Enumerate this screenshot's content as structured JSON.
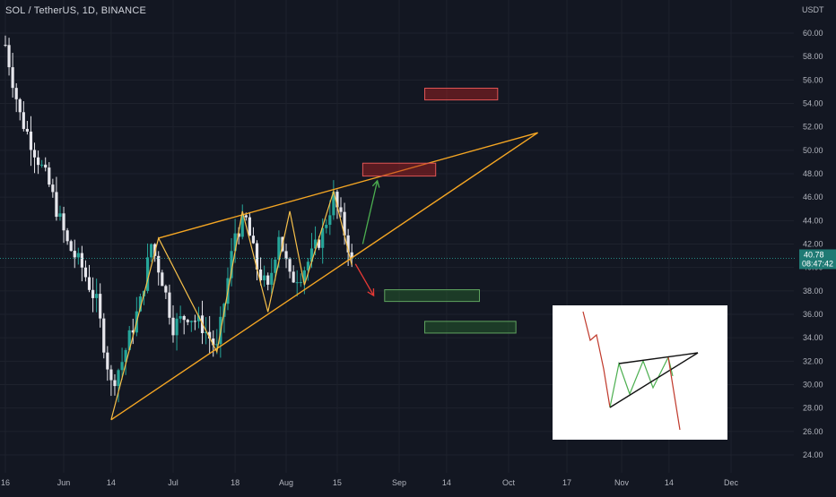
{
  "symbol": {
    "title": "SOL / TetherUS, 1D, BINANCE",
    "currency": "USDT"
  },
  "colors": {
    "background": "#131722",
    "bull": "#26a69a",
    "bear": "#e6e6ec",
    "pattern": "#f5a623",
    "grid": "#1e222d",
    "price_line": "#26a69a",
    "last_price_bg": "#1f7a74",
    "target_red": "#b22222",
    "target_green": "#2e7d32",
    "arrow_up": "#4caf50",
    "arrow_down": "#e53935"
  },
  "price_tag": {
    "price": "40.78",
    "countdown": "08:47:42"
  },
  "chart_data": {
    "type": "candlestick",
    "title": "SOL / TetherUS, 1D, BINANCE",
    "y_unit": "USDT",
    "ylim": [
      23,
      62
    ],
    "y_ticks": [
      24,
      26,
      28,
      30,
      32,
      34,
      36,
      38,
      40,
      42,
      44,
      46,
      48,
      50,
      52,
      54,
      56,
      58,
      60
    ],
    "y_tick_labels": [
      "24.00",
      "26.00",
      "28.00",
      "30.00",
      "32.00",
      "34.00",
      "36.00",
      "38.00",
      "40.00",
      "42.00",
      "44.00",
      "46.00",
      "48.00",
      "50.00",
      "52.00",
      "54.00",
      "56.00",
      "58.00",
      "60.00"
    ],
    "x_ticks": [
      {
        "date": "2022-05-16",
        "label": "16"
      },
      {
        "date": "2022-06-01",
        "label": "Jun"
      },
      {
        "date": "2022-06-14",
        "label": "14"
      },
      {
        "date": "2022-07-01",
        "label": "Jul"
      },
      {
        "date": "2022-07-18",
        "label": "18"
      },
      {
        "date": "2022-08-01",
        "label": "Aug"
      },
      {
        "date": "2022-08-15",
        "label": "15"
      },
      {
        "date": "2022-09-01",
        "label": "Sep"
      },
      {
        "date": "2022-09-14",
        "label": "14"
      },
      {
        "date": "2022-10-01",
        "label": "Oct"
      },
      {
        "date": "2022-10-17",
        "label": "17"
      },
      {
        "date": "2022-11-01",
        "label": "Nov"
      },
      {
        "date": "2022-11-14",
        "label": "14"
      },
      {
        "date": "2022-12-01",
        "label": "Dec"
      }
    ],
    "xlim": [
      "2022-05-16",
      "2022-12-07"
    ],
    "last_price": 40.78,
    "price_anchors": [
      [
        "2022-05-16",
        59
      ],
      [
        "2022-05-20",
        53
      ],
      [
        "2022-05-24",
        50
      ],
      [
        "2022-05-28",
        47
      ],
      [
        "2022-06-02",
        42
      ],
      [
        "2022-06-06",
        40
      ],
      [
        "2022-06-10",
        37
      ],
      [
        "2022-06-14",
        30
      ],
      [
        "2022-06-17",
        32
      ],
      [
        "2022-06-22",
        37
      ],
      [
        "2022-06-25",
        42
      ],
      [
        "2022-06-28",
        39
      ],
      [
        "2022-07-01",
        35
      ],
      [
        "2022-07-05",
        36
      ],
      [
        "2022-07-09",
        35
      ],
      [
        "2022-07-13",
        33
      ],
      [
        "2022-07-18",
        43
      ],
      [
        "2022-07-21",
        44
      ],
      [
        "2022-07-24",
        40
      ],
      [
        "2022-07-27",
        38
      ],
      [
        "2022-07-30",
        43
      ],
      [
        "2022-08-02",
        39
      ],
      [
        "2022-08-05",
        39.5
      ],
      [
        "2022-08-08",
        41
      ],
      [
        "2022-08-11",
        43
      ],
      [
        "2022-08-14",
        46
      ],
      [
        "2022-08-17",
        43
      ],
      [
        "2022-08-19",
        40.78
      ]
    ],
    "pattern": {
      "name": "rising wedge",
      "upper_line": [
        [
          "2022-06-27",
          42.5
        ],
        [
          "2022-10-09",
          51.5
        ]
      ],
      "lower_line": [
        [
          "2022-06-14",
          27
        ],
        [
          "2022-10-09",
          51.5
        ]
      ],
      "zigzag": [
        [
          "2022-06-14",
          27
        ],
        [
          "2022-06-27",
          42.5
        ],
        [
          "2022-07-13",
          32.8
        ],
        [
          "2022-07-20",
          44.8
        ],
        [
          "2022-07-27",
          36.2
        ],
        [
          "2022-08-02",
          44.8
        ],
        [
          "2022-08-06",
          38.5
        ],
        [
          "2022-08-14",
          46.5
        ],
        [
          "2022-08-19",
          40.2
        ]
      ]
    },
    "target_zones": [
      {
        "kind": "resistance",
        "color": "red",
        "date_from": "2022-09-08",
        "date_to": "2022-09-28",
        "price_low": 54.3,
        "price_high": 55.3
      },
      {
        "kind": "resistance",
        "color": "red",
        "date_from": "2022-08-22",
        "date_to": "2022-09-11",
        "price_low": 47.8,
        "price_high": 48.9
      },
      {
        "kind": "support",
        "color": "green",
        "date_from": "2022-08-28",
        "date_to": "2022-09-23",
        "price_low": 37.1,
        "price_high": 38.1
      },
      {
        "kind": "support",
        "color": "green",
        "date_from": "2022-09-08",
        "date_to": "2022-10-03",
        "price_low": 34.4,
        "price_high": 35.4
      }
    ],
    "arrows": [
      {
        "color": "green",
        "from": [
          "2022-08-22",
          42
        ],
        "to": [
          "2022-08-26",
          47.4
        ]
      },
      {
        "color": "red",
        "from": [
          "2022-08-20",
          40.3
        ],
        "to": [
          "2022-08-25",
          37.6
        ]
      }
    ],
    "inset_diagram": {
      "description": "rising wedge reference",
      "lines": {
        "red_down": [
          [
            650,
            348
          ],
          [
            658,
            380
          ],
          [
            665,
            374
          ],
          [
            673,
            412
          ],
          [
            680,
            455
          ]
        ],
        "upper": [
          [
            690,
            406
          ],
          [
            778,
            394
          ]
        ],
        "lower": [
          [
            680,
            455
          ],
          [
            778,
            394
          ]
        ],
        "green_zigzag": [
          [
            680,
            455
          ],
          [
            690,
            406
          ],
          [
            702,
            440
          ],
          [
            717,
            403
          ],
          [
            728,
            433
          ],
          [
            745,
            399
          ],
          [
            750,
            420
          ]
        ],
        "red_break": [
          [
            745,
            399
          ],
          [
            758,
            480
          ]
        ]
      }
    }
  }
}
